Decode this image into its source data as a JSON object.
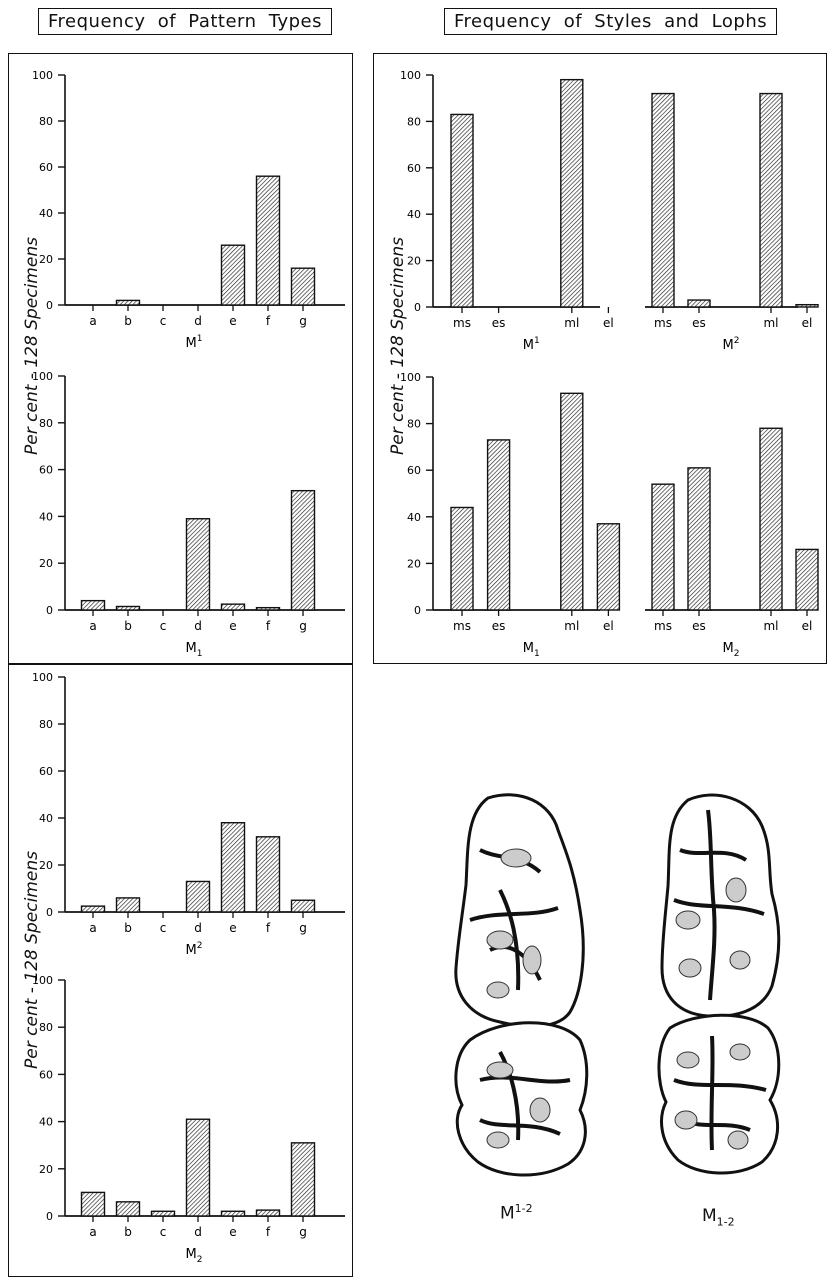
{
  "headers": {
    "pattern": "Frequency of Pattern Types",
    "styles": "Frequency of Styles and Lophs"
  },
  "ylabel": "Per cent - 128 Specimens",
  "teeth_labels": {
    "upper": {
      "base": "M",
      "sup": "1-2"
    },
    "lower": {
      "base": "M",
      "sub": "1-2"
    }
  },
  "colors": {
    "ink": "#111111",
    "bar_fill": "hatched"
  },
  "chart_data": [
    {
      "type": "bar",
      "label_base": "M",
      "label_sup": "1",
      "label_sub": "",
      "categories": [
        "a",
        "b",
        "c",
        "d",
        "e",
        "f",
        "g"
      ],
      "values": [
        0,
        2,
        0,
        0,
        26,
        56,
        16
      ],
      "ylim": [
        0,
        100
      ],
      "yticks": [
        0,
        20,
        40,
        60,
        80,
        100
      ]
    },
    {
      "type": "bar",
      "label_base": "M",
      "label_sup": "",
      "label_sub": "1",
      "categories": [
        "a",
        "b",
        "c",
        "d",
        "e",
        "f",
        "g"
      ],
      "values": [
        4,
        1.5,
        0,
        39,
        2.5,
        1,
        51
      ],
      "ylim": [
        0,
        100
      ],
      "yticks": [
        0,
        20,
        40,
        60,
        80,
        100
      ]
    },
    {
      "type": "bar",
      "label_base": "M",
      "label_sup": "2",
      "label_sub": "",
      "categories": [
        "a",
        "b",
        "c",
        "d",
        "e",
        "f",
        "g"
      ],
      "values": [
        2.5,
        6,
        0,
        13,
        38,
        32,
        5
      ],
      "ylim": [
        0,
        100
      ],
      "yticks": [
        0,
        20,
        40,
        60,
        80,
        100
      ]
    },
    {
      "type": "bar",
      "label_base": "M",
      "label_sup": "",
      "label_sub": "2",
      "categories": [
        "a",
        "b",
        "c",
        "d",
        "e",
        "f",
        "g"
      ],
      "values": [
        10,
        6,
        2,
        41,
        2,
        2.5,
        31
      ],
      "ylim": [
        0,
        100
      ],
      "yticks": [
        0,
        20,
        40,
        60,
        80,
        100
      ]
    },
    {
      "type": "bar",
      "label_base": "M",
      "label_sup": "1",
      "label_sub": "",
      "categories": [
        "ms",
        "es",
        "ml",
        "el"
      ],
      "values": [
        83,
        0,
        98,
        0
      ],
      "ylim": [
        0,
        100
      ],
      "yticks": [
        0,
        20,
        40,
        60,
        80,
        100
      ]
    },
    {
      "type": "bar",
      "label_base": "M",
      "label_sup": "2",
      "label_sub": "",
      "categories": [
        "ms",
        "es",
        "ml",
        "el"
      ],
      "values": [
        92,
        3,
        92,
        1
      ],
      "ylim": [
        0,
        100
      ],
      "yticks": []
    },
    {
      "type": "bar",
      "label_base": "M",
      "label_sup": "",
      "label_sub": "1",
      "categories": [
        "ms",
        "es",
        "ml",
        "el"
      ],
      "values": [
        44,
        73,
        93,
        37
      ],
      "ylim": [
        0,
        100
      ],
      "yticks": [
        0,
        20,
        40,
        60,
        80,
        100
      ]
    },
    {
      "type": "bar",
      "label_base": "M",
      "label_sup": "",
      "label_sub": "2",
      "categories": [
        "ms",
        "es",
        "ml",
        "el"
      ],
      "values": [
        54,
        61,
        78,
        26
      ],
      "ylim": [
        0,
        100
      ],
      "yticks": []
    }
  ]
}
